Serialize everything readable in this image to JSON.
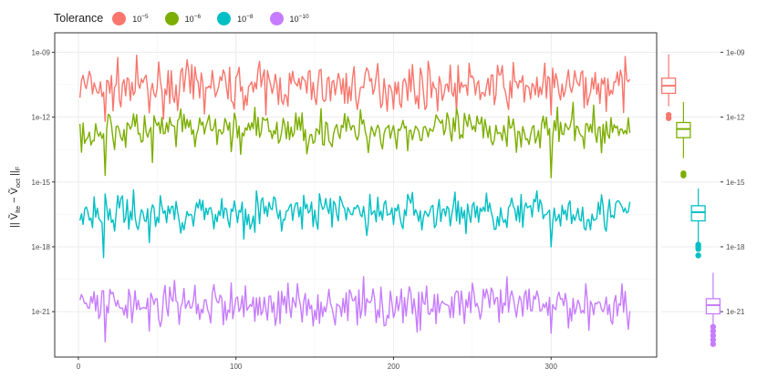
{
  "chart_data": {
    "type": "line",
    "title": "",
    "xlabel": "",
    "ylabel": "|| Ṽ_lte − Ṽ_oct ||_F",
    "ylabel_parts": {
      "v1_sub": "lte",
      "v2_sub": "oct",
      "norm_sub": "F"
    },
    "y_scale": "log10",
    "xlim": [
      -15,
      367
    ],
    "ylim_log10": [
      -23.1,
      -8.1
    ],
    "x_ticks": [
      0,
      100,
      200,
      300
    ],
    "y_ticks": [
      "1e-09",
      "1e-12",
      "1e-15",
      "1e-18",
      "1e-21"
    ],
    "legend": {
      "title": "Tolerance",
      "position": "top",
      "entries": [
        {
          "base": "10",
          "exponent": "−5",
          "color": "#F8766D"
        },
        {
          "base": "10",
          "exponent": "−6",
          "color": "#7CAE00"
        },
        {
          "base": "10",
          "exponent": "−8",
          "color": "#00BFC4"
        },
        {
          "base": "10",
          "exponent": "−10",
          "color": "#C77CFF"
        }
      ]
    },
    "x_range": [
      1,
      350
    ],
    "series": [
      {
        "name": "1e-5",
        "color": "#F8766D",
        "log10_center": -10.6,
        "log10_noise": 0.5,
        "dips": [
          {
            "x": 17,
            "log10": -12.2
          },
          {
            "x": 45,
            "log10": -11.8
          },
          {
            "x": 300,
            "log10": -11.9
          }
        ]
      },
      {
        "name": "1e-6",
        "color": "#7CAE00",
        "log10_center": -12.6,
        "log10_noise": 0.45,
        "dips": [
          {
            "x": 17,
            "log10": -14.7
          },
          {
            "x": 47,
            "log10": -14.1
          },
          {
            "x": 300,
            "log10": -14.8
          }
        ]
      },
      {
        "name": "1e-8",
        "color": "#00BFC4",
        "log10_center": -16.4,
        "log10_noise": 0.45,
        "dips": [
          {
            "x": 16,
            "log10": -18.5
          },
          {
            "x": 45,
            "log10": -17.8
          },
          {
            "x": 300,
            "log10": -18.0
          }
        ]
      },
      {
        "name": "1e-10",
        "color": "#C77CFF",
        "log10_center": -20.7,
        "log10_noise": 0.5,
        "dips": [
          {
            "x": 17,
            "log10": -22.4
          },
          {
            "x": 45,
            "log10": -21.9
          },
          {
            "x": 300,
            "log10": -22.0
          }
        ]
      }
    ],
    "boxplots": [
      {
        "name": "1e-5",
        "color": "#F8766D",
        "whisker_lo": -11.5,
        "q1": -10.9,
        "median": -10.55,
        "q3": -10.2,
        "whisker_hi": -9.1,
        "outliers": [
          -11.9,
          -12.05
        ]
      },
      {
        "name": "1e-6",
        "color": "#7CAE00",
        "whisker_lo": -13.9,
        "q1": -12.95,
        "median": -12.55,
        "q3": -12.25,
        "whisker_hi": -11.3,
        "outliers": [
          -14.6,
          -14.7
        ]
      },
      {
        "name": "1e-8",
        "color": "#00BFC4",
        "whisker_lo": -17.8,
        "q1": -16.8,
        "median": -16.4,
        "q3": -16.1,
        "whisker_hi": -15.3,
        "outliers": [
          -17.9,
          -18.0,
          -18.1,
          -18.4
        ]
      },
      {
        "name": "1e-10",
        "color": "#C77CFF",
        "whisker_lo": -22.1,
        "q1": -21.1,
        "median": -20.7,
        "q3": -20.4,
        "whisker_hi": -19.2,
        "outliers": [
          -21.7,
          -21.9,
          -22.1,
          -22.3,
          -22.5
        ]
      }
    ]
  }
}
